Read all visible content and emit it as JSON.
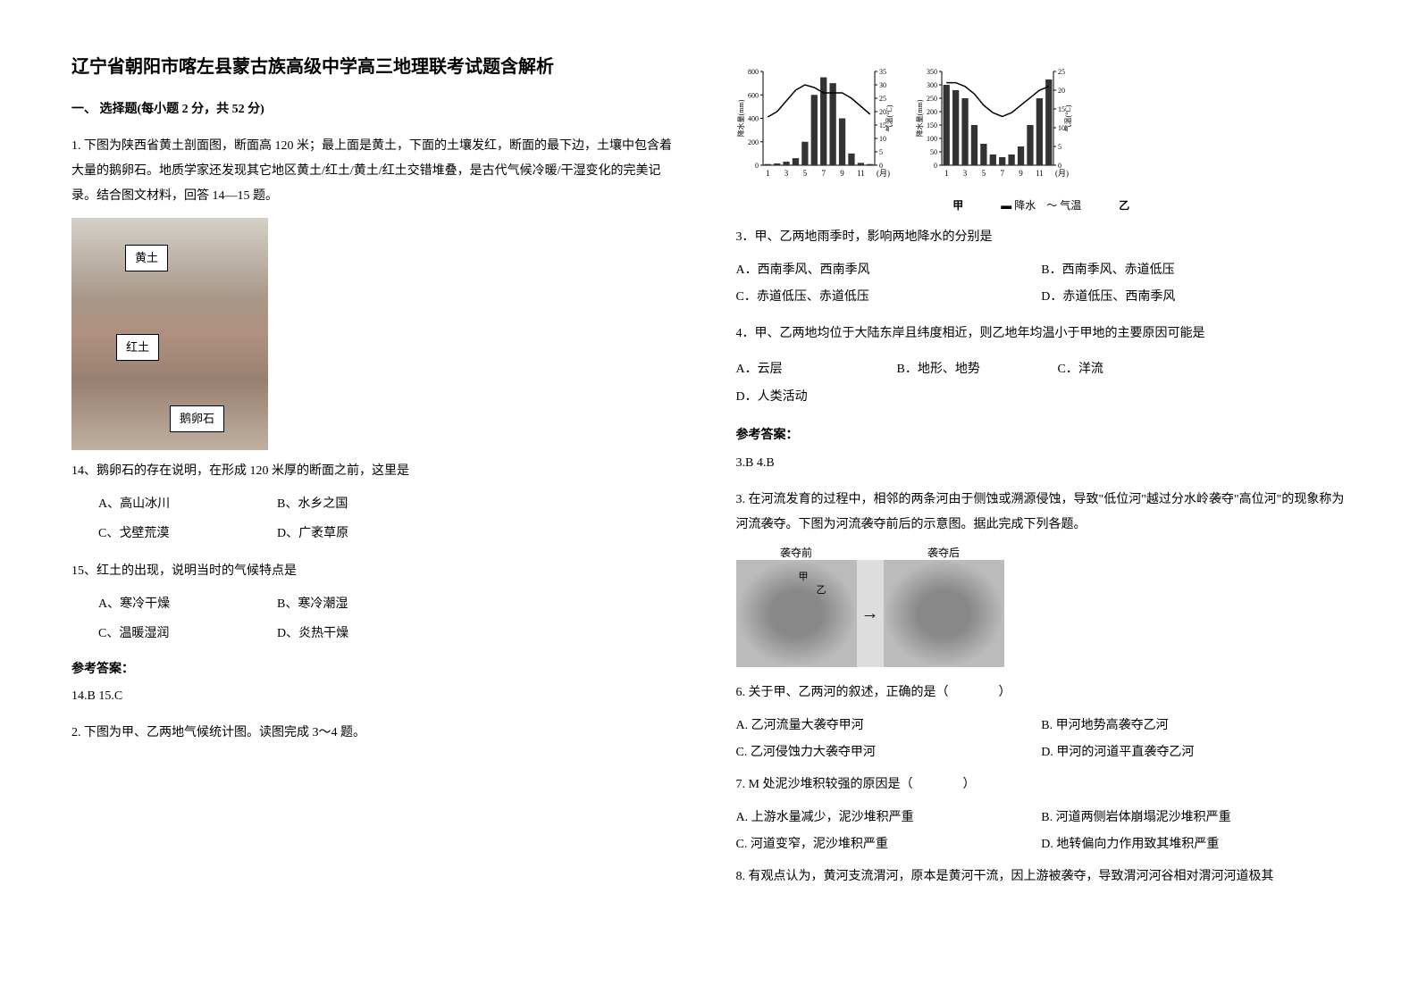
{
  "title": "辽宁省朝阳市喀左县蒙古族高级中学高三地理联考试题含解析",
  "section1_title": "一、 选择题(每小题 2 分，共 52 分)",
  "q1": {
    "stem": "1. 下图为陕西省黄土剖面图，断面高 120 米；最上面是黄土，下面的土壤发红，断面的最下边，土壤中包含着大量的鹅卵石。地质学家还发现其它地区黄土/红土/黄土/红土交错堆叠，是古代气候冷暖/干湿变化的完美记录。结合图文材料，回答 14—15 题。",
    "soil_layers": {
      "top": "黄土",
      "mid": "红土",
      "bottom": "鹅卵石"
    },
    "q14": {
      "stem": "14、鹅卵石的存在说明，在形成 120 米厚的断面之前，这里是",
      "a": "A、高山冰川",
      "b": "B、水乡之国",
      "c": "C、戈壁荒漠",
      "d": "D、广袤草原"
    },
    "q15": {
      "stem": "15、红土的出现，说明当时的气候特点是",
      "a": "A、寒冷干燥",
      "b": "B、寒冷潮湿",
      "c": "C、温暖湿润",
      "d": "D、炎热干燥"
    },
    "answer_label": "参考答案：",
    "answer": "14.B   15.C"
  },
  "q2": {
    "stem": "2. 下图为甲、乙两地气候统计图。读图完成 3～4 题。",
    "chart_labels": {
      "y_left_label": "降水量(mm)",
      "y_right_label": "气温(°C)",
      "x_label": "(月)",
      "legend_rain": "降水",
      "legend_temp": "气温",
      "jia": "甲",
      "yi": "乙"
    },
    "chart_jia": {
      "precip_y_ticks": [
        0,
        200,
        400,
        600,
        800
      ],
      "temp_y_ticks": [
        0,
        5,
        10,
        15,
        20,
        25,
        30,
        35
      ],
      "x_ticks": [
        1,
        3,
        5,
        7,
        9,
        11
      ],
      "precip_values": [
        10,
        15,
        30,
        60,
        200,
        600,
        750,
        700,
        400,
        100,
        20,
        10
      ],
      "temp_values": [
        18,
        20,
        24,
        28,
        30,
        29,
        27,
        27,
        27,
        25,
        22,
        19
      ],
      "bar_color": "#333333",
      "line_color": "#000000",
      "bg_color": "#ffffff"
    },
    "chart_yi": {
      "precip_y_ticks": [
        0,
        50,
        100,
        150,
        200,
        250,
        300,
        350
      ],
      "temp_y_ticks": [
        0,
        5,
        10,
        15,
        20,
        25
      ],
      "x_ticks": [
        1,
        3,
        5,
        7,
        9,
        11
      ],
      "precip_values": [
        300,
        280,
        250,
        150,
        80,
        40,
        30,
        40,
        70,
        150,
        250,
        320
      ],
      "temp_values": [
        22,
        22,
        21,
        19,
        16,
        14,
        13,
        14,
        16,
        18,
        20,
        21
      ],
      "bar_color": "#333333",
      "line_color": "#000000",
      "bg_color": "#ffffff"
    },
    "q3": {
      "stem": "3．甲、乙两地雨季时，影响两地降水的分别是",
      "a": "A．西南季风、西南季风",
      "b": "B．西南季风、赤道低压",
      "c": "C．赤道低压、赤道低压",
      "d": "D．赤道低压、西南季风"
    },
    "q4": {
      "stem": "4．甲、乙两地均位于大陆东岸且纬度相近，则乙地年均温小于甲地的主要原因可能是",
      "a": "A．云层",
      "b": "B．地形、地势",
      "c": "C．洋流",
      "d": "D．人类活动"
    },
    "answer_label": "参考答案：",
    "answer": "3.B   4.B"
  },
  "q3_group": {
    "stem": "3. 在河流发育的过程中，相邻的两条河由于侧蚀或溯源侵蚀，导致\"低位河\"越过分水岭袭夺\"高位河\"的现象称为河流袭夺。下图为河流袭夺前后的示意图。据此完成下列各题。",
    "img_labels": {
      "before": "袭夺前",
      "after": "袭夺后",
      "jia": "甲",
      "yi": "乙"
    },
    "q6": {
      "stem": "6. 关于甲、乙两河的叙述，正确的是（　　　　）",
      "a": "A. 乙河流量大袭夺甲河",
      "b": "B. 甲河地势高袭夺乙河",
      "c": "C. 乙河侵蚀力大袭夺甲河",
      "d": "D. 甲河的河道平直袭夺乙河"
    },
    "q7": {
      "stem": "7. M 处泥沙堆积较强的原因是（　　　　）",
      "a": "A. 上游水量减少，泥沙堆积严重",
      "b": "B. 河道两侧岩体崩塌泥沙堆积严重",
      "c": "C. 河道变窄，泥沙堆积严重",
      "d": "D. 地转偏向力作用致其堆积严重"
    },
    "q8": {
      "stem": "8. 有观点认为，黄河支流渭河，原本是黄河干流，因上游被袭夺，导致渭河河谷相对渭河河道极其"
    }
  }
}
